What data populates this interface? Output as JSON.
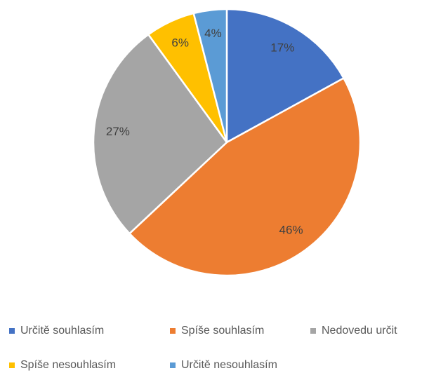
{
  "chart_data": {
    "type": "pie",
    "categories": [
      "Určitě souhlasím",
      "Spíše souhlasím",
      "Nedovedu určit",
      "Spíše nesouhlasím",
      "Určitě nesouhlasím"
    ],
    "values": [
      17,
      46,
      27,
      6,
      4
    ],
    "value_labels": [
      "17%",
      "46%",
      "27%",
      "6%",
      "4%"
    ],
    "colors": [
      "#4472c4",
      "#ed7d31",
      "#a5a5a5",
      "#ffc000",
      "#5b9bd5"
    ],
    "legend": "bottom"
  }
}
